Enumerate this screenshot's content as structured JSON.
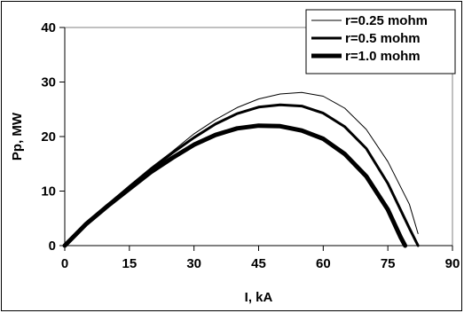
{
  "chart_data": {
    "type": "line",
    "xlabel": "I, kA",
    "ylabel": "Pp, MW",
    "xlim": [
      0,
      90
    ],
    "ylim": [
      0,
      40
    ],
    "xticks": [
      0,
      15,
      30,
      45,
      60,
      75,
      90
    ],
    "yticks": [
      0,
      10,
      20,
      30,
      40
    ],
    "grid": "horizontal at y=40",
    "legend_position": "top-right",
    "series": [
      {
        "name": "r=0.25 mohm",
        "line_weight": "thin",
        "x": [
          0,
          5,
          10,
          15,
          20,
          25,
          30,
          35,
          40,
          45,
          50,
          55,
          60,
          65,
          70,
          75,
          80,
          82
        ],
        "y": [
          0,
          4.2,
          7.6,
          11,
          14.3,
          17.3,
          20.5,
          23.1,
          25.3,
          26.9,
          27.8,
          28.1,
          27.4,
          25.2,
          21.3,
          15.4,
          7.6,
          2.2
        ]
      },
      {
        "name": "r=0.5 mohm",
        "line_weight": "medium",
        "x": [
          0,
          5,
          10,
          15,
          20,
          25,
          30,
          35,
          40,
          45,
          50,
          55,
          60,
          65,
          70,
          75,
          80,
          82
        ],
        "y": [
          0,
          4.1,
          7.5,
          10.8,
          14,
          17,
          19.8,
          22.3,
          24.2,
          25.4,
          25.8,
          25.6,
          24.3,
          21.8,
          17.8,
          11.4,
          3.2,
          0
        ]
      },
      {
        "name": "r=1.0 mohm",
        "line_weight": "thick",
        "x": [
          0,
          5,
          10,
          15,
          20,
          25,
          30,
          35,
          40,
          45,
          50,
          55,
          60,
          65,
          70,
          75,
          78,
          79
        ],
        "y": [
          0,
          4,
          7.3,
          10.4,
          13.5,
          16.1,
          18.5,
          20.3,
          21.5,
          22,
          21.9,
          21.1,
          19.6,
          16.8,
          12.7,
          6.6,
          1.5,
          0
        ]
      }
    ]
  },
  "colors": {
    "line": "#000000",
    "background": "#ffffff"
  }
}
